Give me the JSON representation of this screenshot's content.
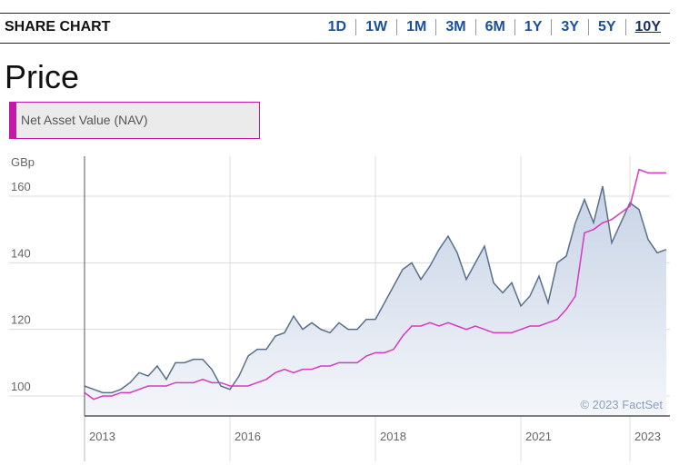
{
  "header": {
    "title": "SHARE CHART",
    "tabs": [
      "1D",
      "1W",
      "1M",
      "3M",
      "6M",
      "1Y",
      "3Y",
      "5Y",
      "10Y"
    ],
    "selected_tab": "10Y"
  },
  "section_title": "Price",
  "chart_data": {
    "type": "line",
    "y_label": "GBp",
    "annotation": "© 2023 FactSet",
    "categories": [
      "2013",
      null,
      null,
      null,
      null,
      null,
      null,
      null,
      null,
      null,
      null,
      null,
      null,
      null,
      null,
      null,
      "2016",
      null,
      null,
      null,
      null,
      null,
      null,
      null,
      null,
      null,
      null,
      null,
      null,
      null,
      null,
      null,
      "2018",
      null,
      null,
      null,
      null,
      null,
      null,
      null,
      null,
      null,
      null,
      null,
      null,
      null,
      null,
      null,
      "2021",
      null,
      null,
      null,
      null,
      null,
      null,
      null,
      null,
      null,
      null,
      null,
      "2023",
      null,
      null,
      null,
      null
    ],
    "series": [
      {
        "color": "#5a6f8a",
        "values": [
          103,
          102,
          101,
          101,
          102,
          104,
          107,
          106,
          109,
          105,
          110,
          110,
          111,
          111,
          108,
          103,
          102,
          106,
          112,
          114,
          114,
          118,
          119,
          124,
          120,
          122,
          120,
          119,
          122,
          120,
          120,
          123,
          123,
          128,
          133,
          138,
          140,
          135,
          139,
          144,
          148,
          143,
          135,
          140,
          145,
          134,
          131,
          134,
          127,
          130,
          136,
          128,
          140,
          142,
          152,
          159,
          152,
          163,
          146,
          152,
          158,
          156,
          147,
          143,
          144
        ]
      },
      {
        "name": "Net Asset Value (NAV)",
        "color": "#d63ac0",
        "values": [
          101,
          99,
          100,
          100,
          101,
          101,
          102,
          103,
          103,
          103,
          104,
          104,
          104,
          105,
          104,
          104,
          103,
          103,
          103,
          104,
          105,
          107,
          108,
          107,
          108,
          108,
          109,
          109,
          110,
          110,
          110,
          112,
          113,
          113,
          114,
          118,
          121,
          121,
          122,
          121,
          122,
          121,
          120,
          121,
          120,
          119,
          119,
          119,
          120,
          121,
          121,
          122,
          123,
          126,
          130,
          149,
          150,
          152,
          153,
          155,
          157,
          168,
          167,
          167,
          167
        ]
      }
    ],
    "ylim": [
      94,
      172
    ],
    "yticks": [
      100,
      120,
      140,
      160
    ],
    "grid": true
  }
}
